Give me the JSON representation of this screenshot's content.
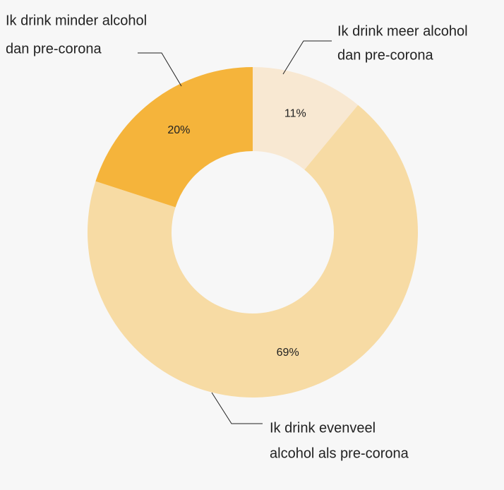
{
  "chart_data": {
    "type": "donut",
    "categories": [
      [
        "Ik drink meer alcohol",
        "dan pre-corona"
      ],
      [
        "Ik drink evenveel",
        "alcohol als pre-corona"
      ],
      [
        "Ik drink minder alcohol",
        "dan pre-corona"
      ]
    ],
    "values": [
      11,
      69,
      20
    ],
    "value_labels": [
      "11%",
      "69%",
      "20%"
    ],
    "colors": [
      "#f8e8d2",
      "#f7dba4",
      "#f5b43b"
    ]
  }
}
